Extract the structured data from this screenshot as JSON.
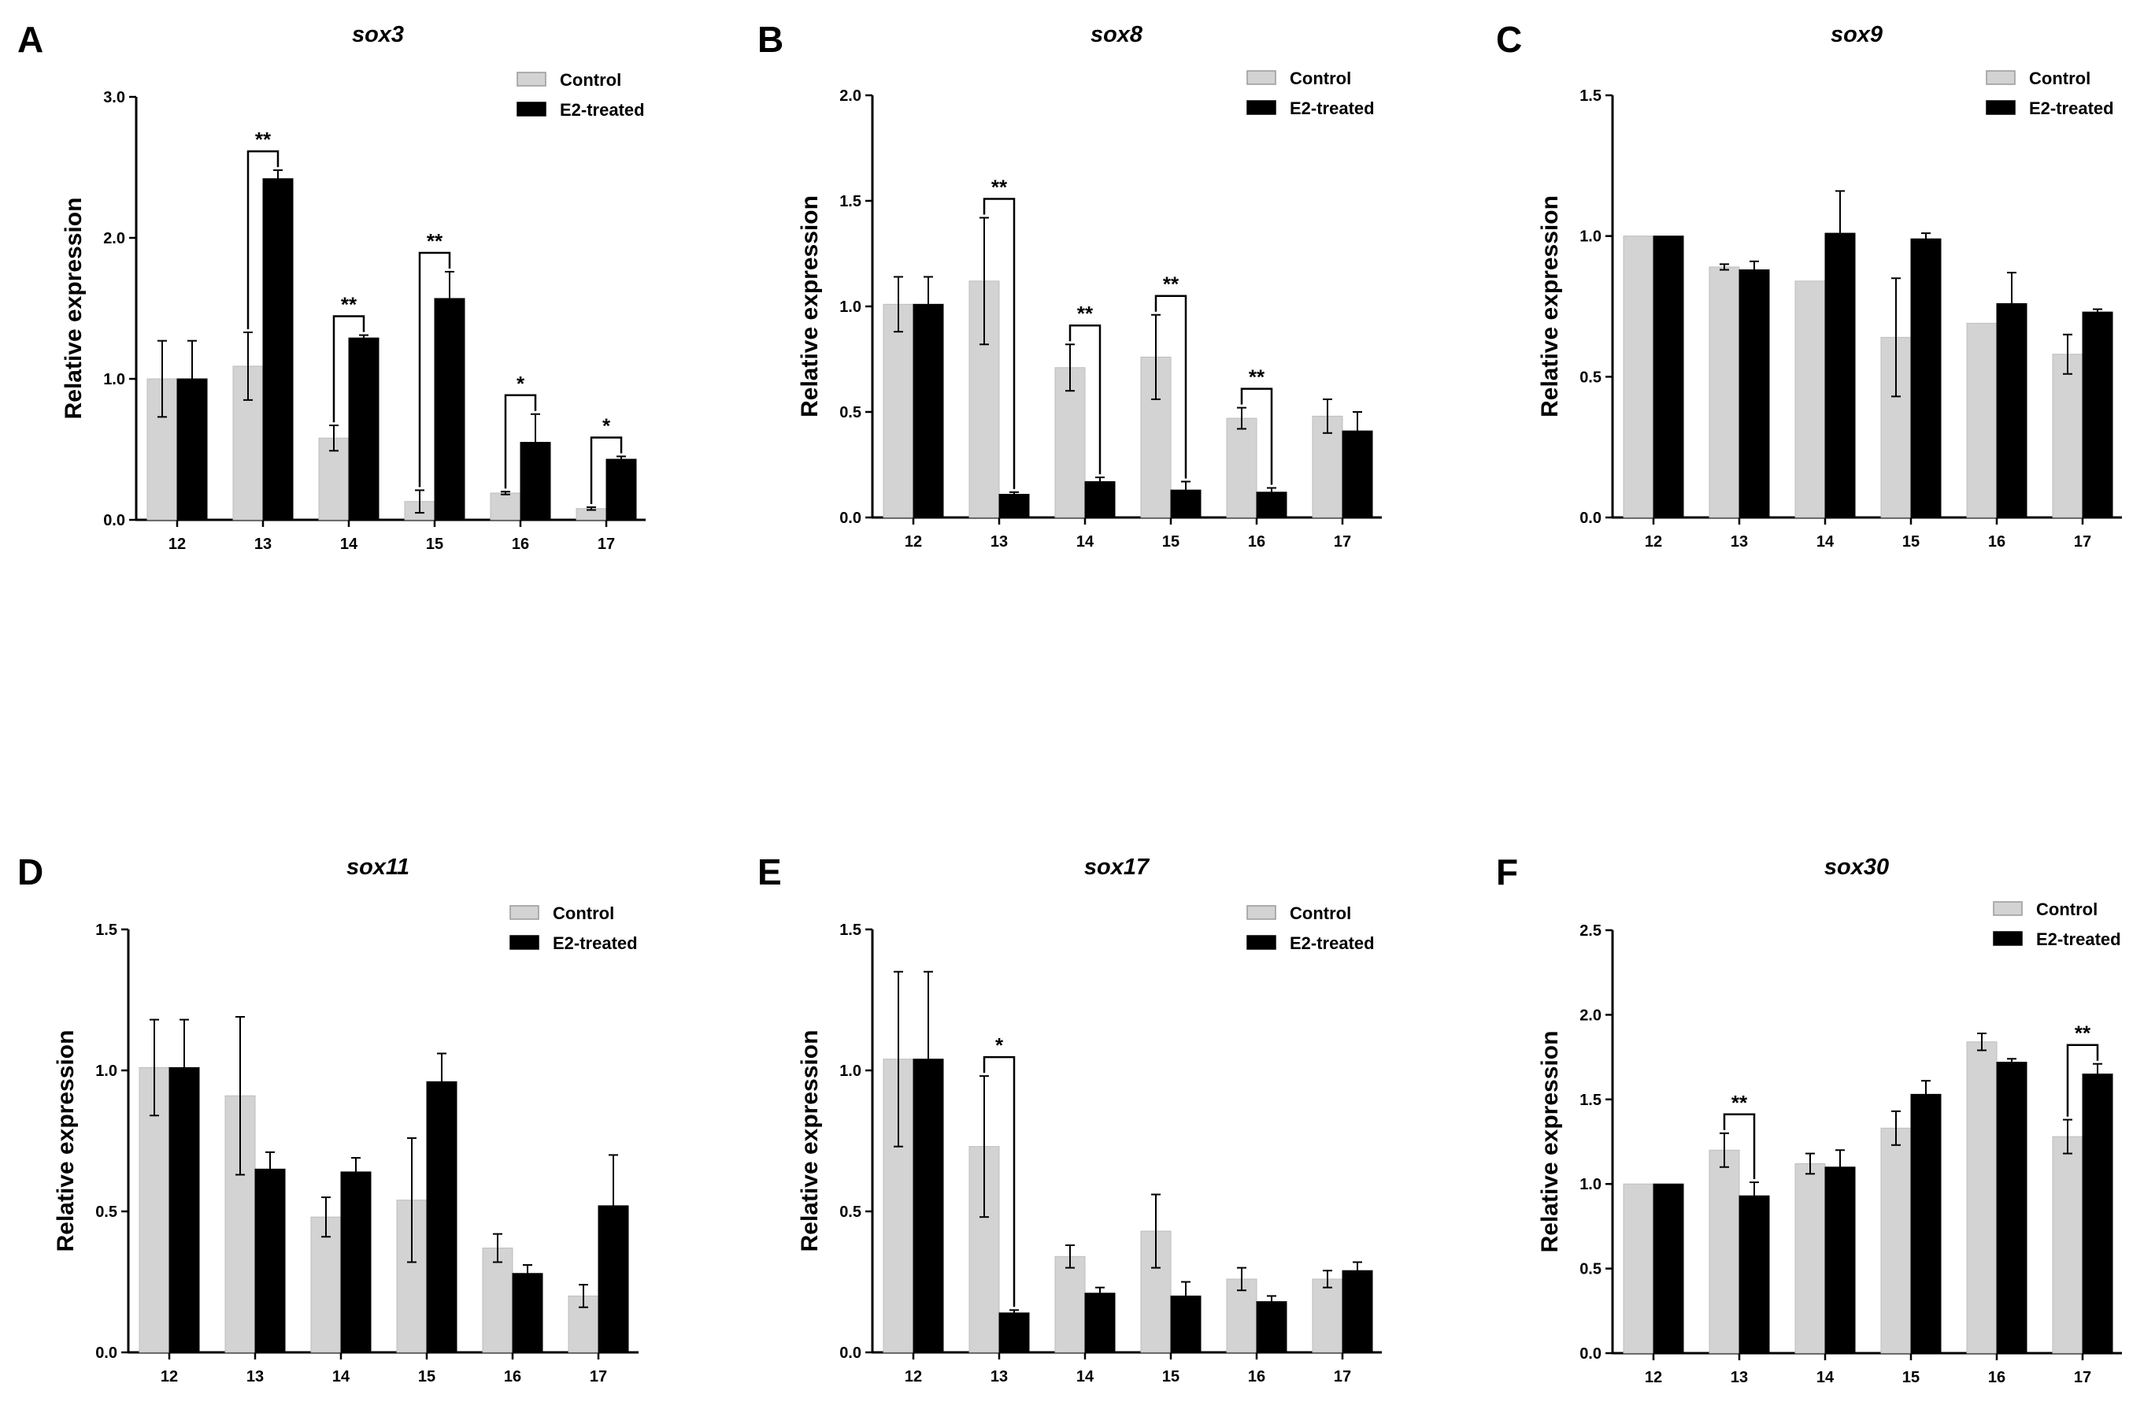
{
  "figure": {
    "panels": [
      {
        "label": "A",
        "chart_data": {
          "type": "bar",
          "title": "sox3",
          "ylabel": "Relative  expression",
          "xlabel": "",
          "categories": [
            "12",
            "13",
            "14",
            "15",
            "16",
            "17"
          ],
          "ylim": [
            0,
            3.0
          ],
          "yticks": [
            "0.0",
            "1.0",
            "2.0",
            "3.0"
          ],
          "series": [
            {
              "name": "Control",
              "color": "#d3d3d3",
              "values": [
                1.0,
                1.09,
                0.58,
                0.13,
                0.19,
                0.08
              ],
              "errors": [
                0.27,
                0.24,
                0.09,
                0.08,
                0.01,
                0.01
              ]
            },
            {
              "name": "E2-treated",
              "color": "#000000",
              "values": [
                1.0,
                2.42,
                1.29,
                1.57,
                0.55,
                0.43
              ],
              "errors": [
                0.27,
                0.06,
                0.02,
                0.19,
                0.2,
                0.02
              ]
            }
          ],
          "significance": [
            {
              "category": "13",
              "label": "**"
            },
            {
              "category": "14",
              "label": "**"
            },
            {
              "category": "15",
              "label": "**"
            },
            {
              "category": "16",
              "label": "*"
            },
            {
              "category": "17",
              "label": "*"
            }
          ],
          "legend": "top-right"
        }
      },
      {
        "label": "B",
        "chart_data": {
          "type": "bar",
          "title": "sox8",
          "ylabel": "Relative  expression",
          "xlabel": "",
          "categories": [
            "12",
            "13",
            "14",
            "15",
            "16",
            "17"
          ],
          "ylim": [
            0,
            2.0
          ],
          "yticks": [
            "0.0",
            "0.5",
            "1.0",
            "1.5",
            "2.0"
          ],
          "series": [
            {
              "name": "Control",
              "color": "#d3d3d3",
              "values": [
                1.01,
                1.12,
                0.71,
                0.76,
                0.47,
                0.48
              ],
              "errors": [
                0.13,
                0.3,
                0.11,
                0.2,
                0.05,
                0.08
              ]
            },
            {
              "name": "E2-treated",
              "color": "#000000",
              "values": [
                1.01,
                0.11,
                0.17,
                0.13,
                0.12,
                0.41
              ],
              "errors": [
                0.13,
                0.01,
                0.02,
                0.04,
                0.02,
                0.09
              ]
            }
          ],
          "significance": [
            {
              "category": "13",
              "label": "**"
            },
            {
              "category": "14",
              "label": "**"
            },
            {
              "category": "15",
              "label": "**"
            },
            {
              "category": "16",
              "label": "**"
            }
          ],
          "legend": "top-right"
        }
      },
      {
        "label": "C",
        "chart_data": {
          "type": "bar",
          "title": "sox9",
          "ylabel": "Relative  expression",
          "xlabel": "",
          "categories": [
            "12",
            "13",
            "14",
            "15",
            "16",
            "17"
          ],
          "ylim": [
            0,
            1.5
          ],
          "yticks": [
            "0.0",
            "0.5",
            "1.0",
            "1.5"
          ],
          "series": [
            {
              "name": "Control",
              "color": "#d3d3d3",
              "values": [
                1.0,
                0.89,
                0.84,
                0.64,
                0.69,
                0.58
              ],
              "errors": [
                0,
                0.01,
                0,
                0.21,
                0,
                0.07
              ]
            },
            {
              "name": "E2-treated",
              "color": "#000000",
              "values": [
                1.0,
                0.88,
                1.01,
                0.99,
                0.76,
                0.73
              ],
              "errors": [
                0,
                0.03,
                0.15,
                0.02,
                0.11,
                0.01
              ]
            }
          ],
          "significance": [],
          "legend": "top-right"
        }
      },
      {
        "label": "D",
        "chart_data": {
          "type": "bar",
          "title": "sox11",
          "ylabel": "Relative  expression",
          "xlabel": "",
          "categories": [
            "12",
            "13",
            "14",
            "15",
            "16",
            "17"
          ],
          "ylim": [
            0,
            1.5
          ],
          "yticks": [
            "0.0",
            "0.5",
            "1.0",
            "1.5"
          ],
          "series": [
            {
              "name": "Control",
              "color": "#d3d3d3",
              "values": [
                1.01,
                0.91,
                0.48,
                0.54,
                0.37,
                0.2
              ],
              "errors": [
                0.17,
                0.28,
                0.07,
                0.22,
                0.05,
                0.04
              ]
            },
            {
              "name": "E2-treated",
              "color": "#000000",
              "values": [
                1.01,
                0.65,
                0.64,
                0.96,
                0.28,
                0.52
              ],
              "errors": [
                0.17,
                0.06,
                0.05,
                0.1,
                0.03,
                0.18
              ]
            }
          ],
          "significance": [],
          "legend": "top-right"
        }
      },
      {
        "label": "E",
        "chart_data": {
          "type": "bar",
          "title": "sox17",
          "ylabel": "Relative  expression",
          "xlabel": "",
          "categories": [
            "12",
            "13",
            "14",
            "15",
            "16",
            "17"
          ],
          "ylim": [
            0,
            1.5
          ],
          "yticks": [
            "0.0",
            "0.5",
            "1.0",
            "1.5"
          ],
          "series": [
            {
              "name": "Control",
              "color": "#d3d3d3",
              "values": [
                1.04,
                0.73,
                0.34,
                0.43,
                0.26,
                0.26
              ],
              "errors": [
                0.31,
                0.25,
                0.04,
                0.13,
                0.04,
                0.03
              ]
            },
            {
              "name": "E2-treated",
              "color": "#000000",
              "values": [
                1.04,
                0.14,
                0.21,
                0.2,
                0.18,
                0.29
              ],
              "errors": [
                0.31,
                0.01,
                0.02,
                0.05,
                0.02,
                0.03
              ]
            }
          ],
          "significance": [
            {
              "category": "13",
              "label": "*"
            }
          ],
          "legend": "top-right"
        }
      },
      {
        "label": "F",
        "chart_data": {
          "type": "bar",
          "title": "sox30",
          "ylabel": "Relative  expression",
          "xlabel": "",
          "categories": [
            "12",
            "13",
            "14",
            "15",
            "16",
            "17"
          ],
          "ylim": [
            0,
            2.5
          ],
          "yticks": [
            "0.0",
            "0.5",
            "1.0",
            "1.5",
            "2.0",
            "2.5"
          ],
          "series": [
            {
              "name": "Control",
              "color": "#d3d3d3",
              "values": [
                1.0,
                1.2,
                1.12,
                1.33,
                1.84,
                1.28
              ],
              "errors": [
                0,
                0.1,
                0.06,
                0.1,
                0.05,
                0.1
              ]
            },
            {
              "name": "E2-treated",
              "color": "#000000",
              "values": [
                1.0,
                0.93,
                1.1,
                1.53,
                1.72,
                1.65
              ],
              "errors": [
                0,
                0.08,
                0.1,
                0.08,
                0.02,
                0.06
              ]
            }
          ],
          "significance": [
            {
              "category": "13",
              "label": "**"
            },
            {
              "category": "17",
              "label": "**"
            }
          ],
          "legend": "top-right"
        }
      }
    ]
  }
}
